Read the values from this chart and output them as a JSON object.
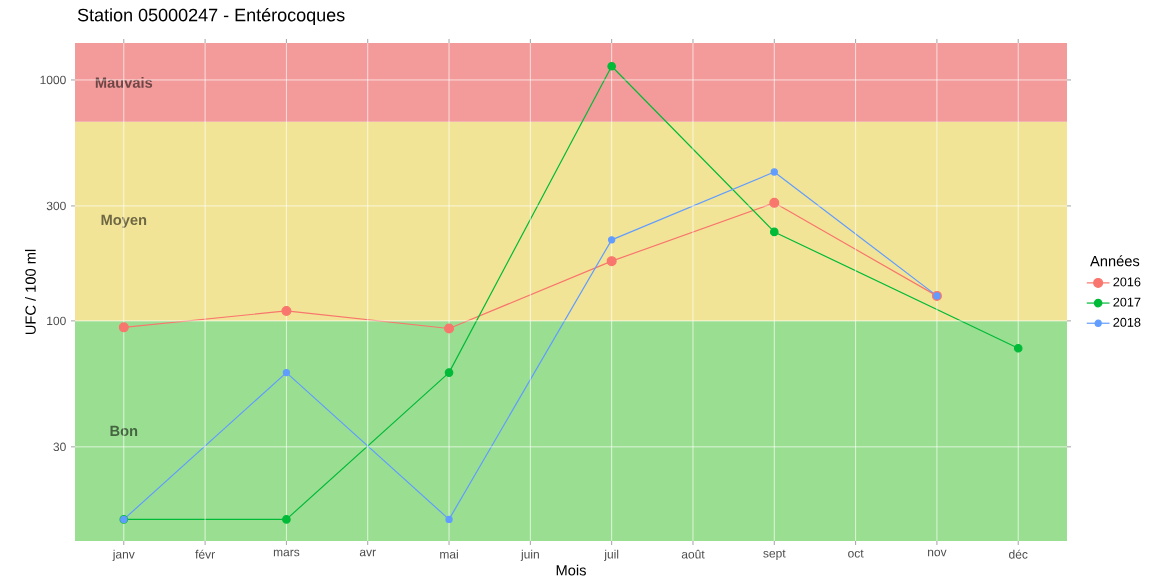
{
  "chart_data": {
    "type": "line",
    "title": "Station 05000247 - Entérocoques",
    "xlabel": "Mois",
    "ylabel": "UFC / 100 ml",
    "legend_title": "Années",
    "categories": [
      "janv",
      "févr",
      "mars",
      "avr",
      "mai",
      "juin",
      "juil",
      "août",
      "sept",
      "oct",
      "nov",
      "déc"
    ],
    "ylim": [
      12.2,
      1424
    ],
    "yticks": [
      30,
      100,
      300,
      1000
    ],
    "log": "y",
    "grid": true,
    "legend": "right",
    "marker": "circle",
    "line_style": "solid",
    "series": [
      {
        "name": "2016",
        "color": "#F8766D",
        "values": [
          94,
          null,
          110,
          null,
          93,
          null,
          177,
          null,
          309,
          null,
          127,
          null
        ]
      },
      {
        "name": "2017",
        "color": "#00BA38",
        "values": [
          15,
          null,
          15,
          null,
          61,
          null,
          1140,
          null,
          234,
          null,
          null,
          77
        ]
      },
      {
        "name": "2018",
        "color": "#619CFF",
        "values": [
          15,
          null,
          61,
          null,
          15,
          null,
          217,
          null,
          415,
          null,
          127,
          null
        ]
      }
    ],
    "bands": [
      {
        "axis": "y",
        "from": 12.2,
        "to": 100,
        "label": "Bon",
        "color": "#9ADF91"
      },
      {
        "axis": "y",
        "from": 100,
        "to": 670,
        "label": "Moyen",
        "color": "#F2E496"
      },
      {
        "axis": "y",
        "from": 670,
        "to": 1424,
        "label": "Mauvais",
        "color": "#F29B9A"
      }
    ]
  }
}
